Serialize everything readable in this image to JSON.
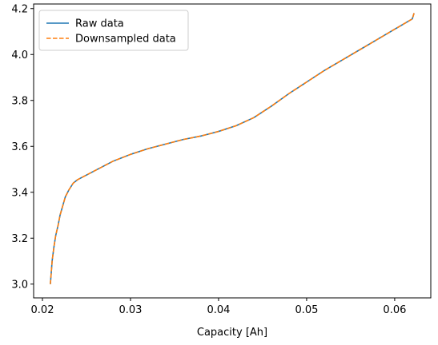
{
  "chart_data": {
    "type": "line",
    "title": "",
    "xlabel": "Capacity [Ah]",
    "ylabel": "",
    "xlim": [
      0.019,
      0.0641
    ],
    "ylim": [
      2.94,
      4.22
    ],
    "xticks": [
      0.02,
      0.03,
      0.04,
      0.05,
      0.06
    ],
    "xtick_labels": [
      "0.02",
      "0.03",
      "0.04",
      "0.05",
      "0.06"
    ],
    "yticks": [
      3.0,
      3.2,
      3.4,
      3.6,
      3.8,
      4.0,
      4.2
    ],
    "ytick_labels": [
      "3.0",
      "3.2",
      "3.4",
      "3.6",
      "3.8",
      "4.0",
      "4.2"
    ],
    "grid": false,
    "legend_position": "top-left",
    "series": [
      {
        "name": "Raw data",
        "color": "#1f77b4",
        "style": "solid",
        "x": [
          0.0209,
          0.021,
          0.0211,
          0.0213,
          0.0215,
          0.0218,
          0.022,
          0.0223,
          0.0226,
          0.023,
          0.0235,
          0.024,
          0.025,
          0.026,
          0.027,
          0.028,
          0.029,
          0.03,
          0.032,
          0.034,
          0.036,
          0.038,
          0.04,
          0.042,
          0.044,
          0.046,
          0.048,
          0.05,
          0.052,
          0.054,
          0.056,
          0.058,
          0.06,
          0.062,
          0.0622
        ],
        "y": [
          3.0,
          3.05,
          3.1,
          3.16,
          3.21,
          3.26,
          3.3,
          3.34,
          3.38,
          3.41,
          3.44,
          3.455,
          3.475,
          3.495,
          3.515,
          3.535,
          3.55,
          3.565,
          3.59,
          3.61,
          3.63,
          3.645,
          3.665,
          3.69,
          3.725,
          3.775,
          3.83,
          3.88,
          3.93,
          3.975,
          4.02,
          4.065,
          4.11,
          4.155,
          4.18
        ]
      },
      {
        "name": "Downsampled data",
        "color": "#ff7f0e",
        "style": "dashed",
        "x": [
          0.0209,
          0.021,
          0.0211,
          0.0213,
          0.0215,
          0.0218,
          0.022,
          0.0223,
          0.0226,
          0.023,
          0.0235,
          0.024,
          0.025,
          0.026,
          0.027,
          0.028,
          0.029,
          0.03,
          0.032,
          0.034,
          0.036,
          0.038,
          0.04,
          0.042,
          0.044,
          0.046,
          0.048,
          0.05,
          0.052,
          0.054,
          0.056,
          0.058,
          0.06,
          0.062,
          0.0622
        ],
        "y": [
          3.0,
          3.05,
          3.1,
          3.16,
          3.21,
          3.26,
          3.3,
          3.34,
          3.38,
          3.41,
          3.44,
          3.455,
          3.475,
          3.495,
          3.515,
          3.535,
          3.55,
          3.565,
          3.59,
          3.61,
          3.63,
          3.645,
          3.665,
          3.69,
          3.725,
          3.775,
          3.83,
          3.88,
          3.93,
          3.975,
          4.02,
          4.065,
          4.11,
          4.155,
          4.18
        ]
      }
    ]
  }
}
